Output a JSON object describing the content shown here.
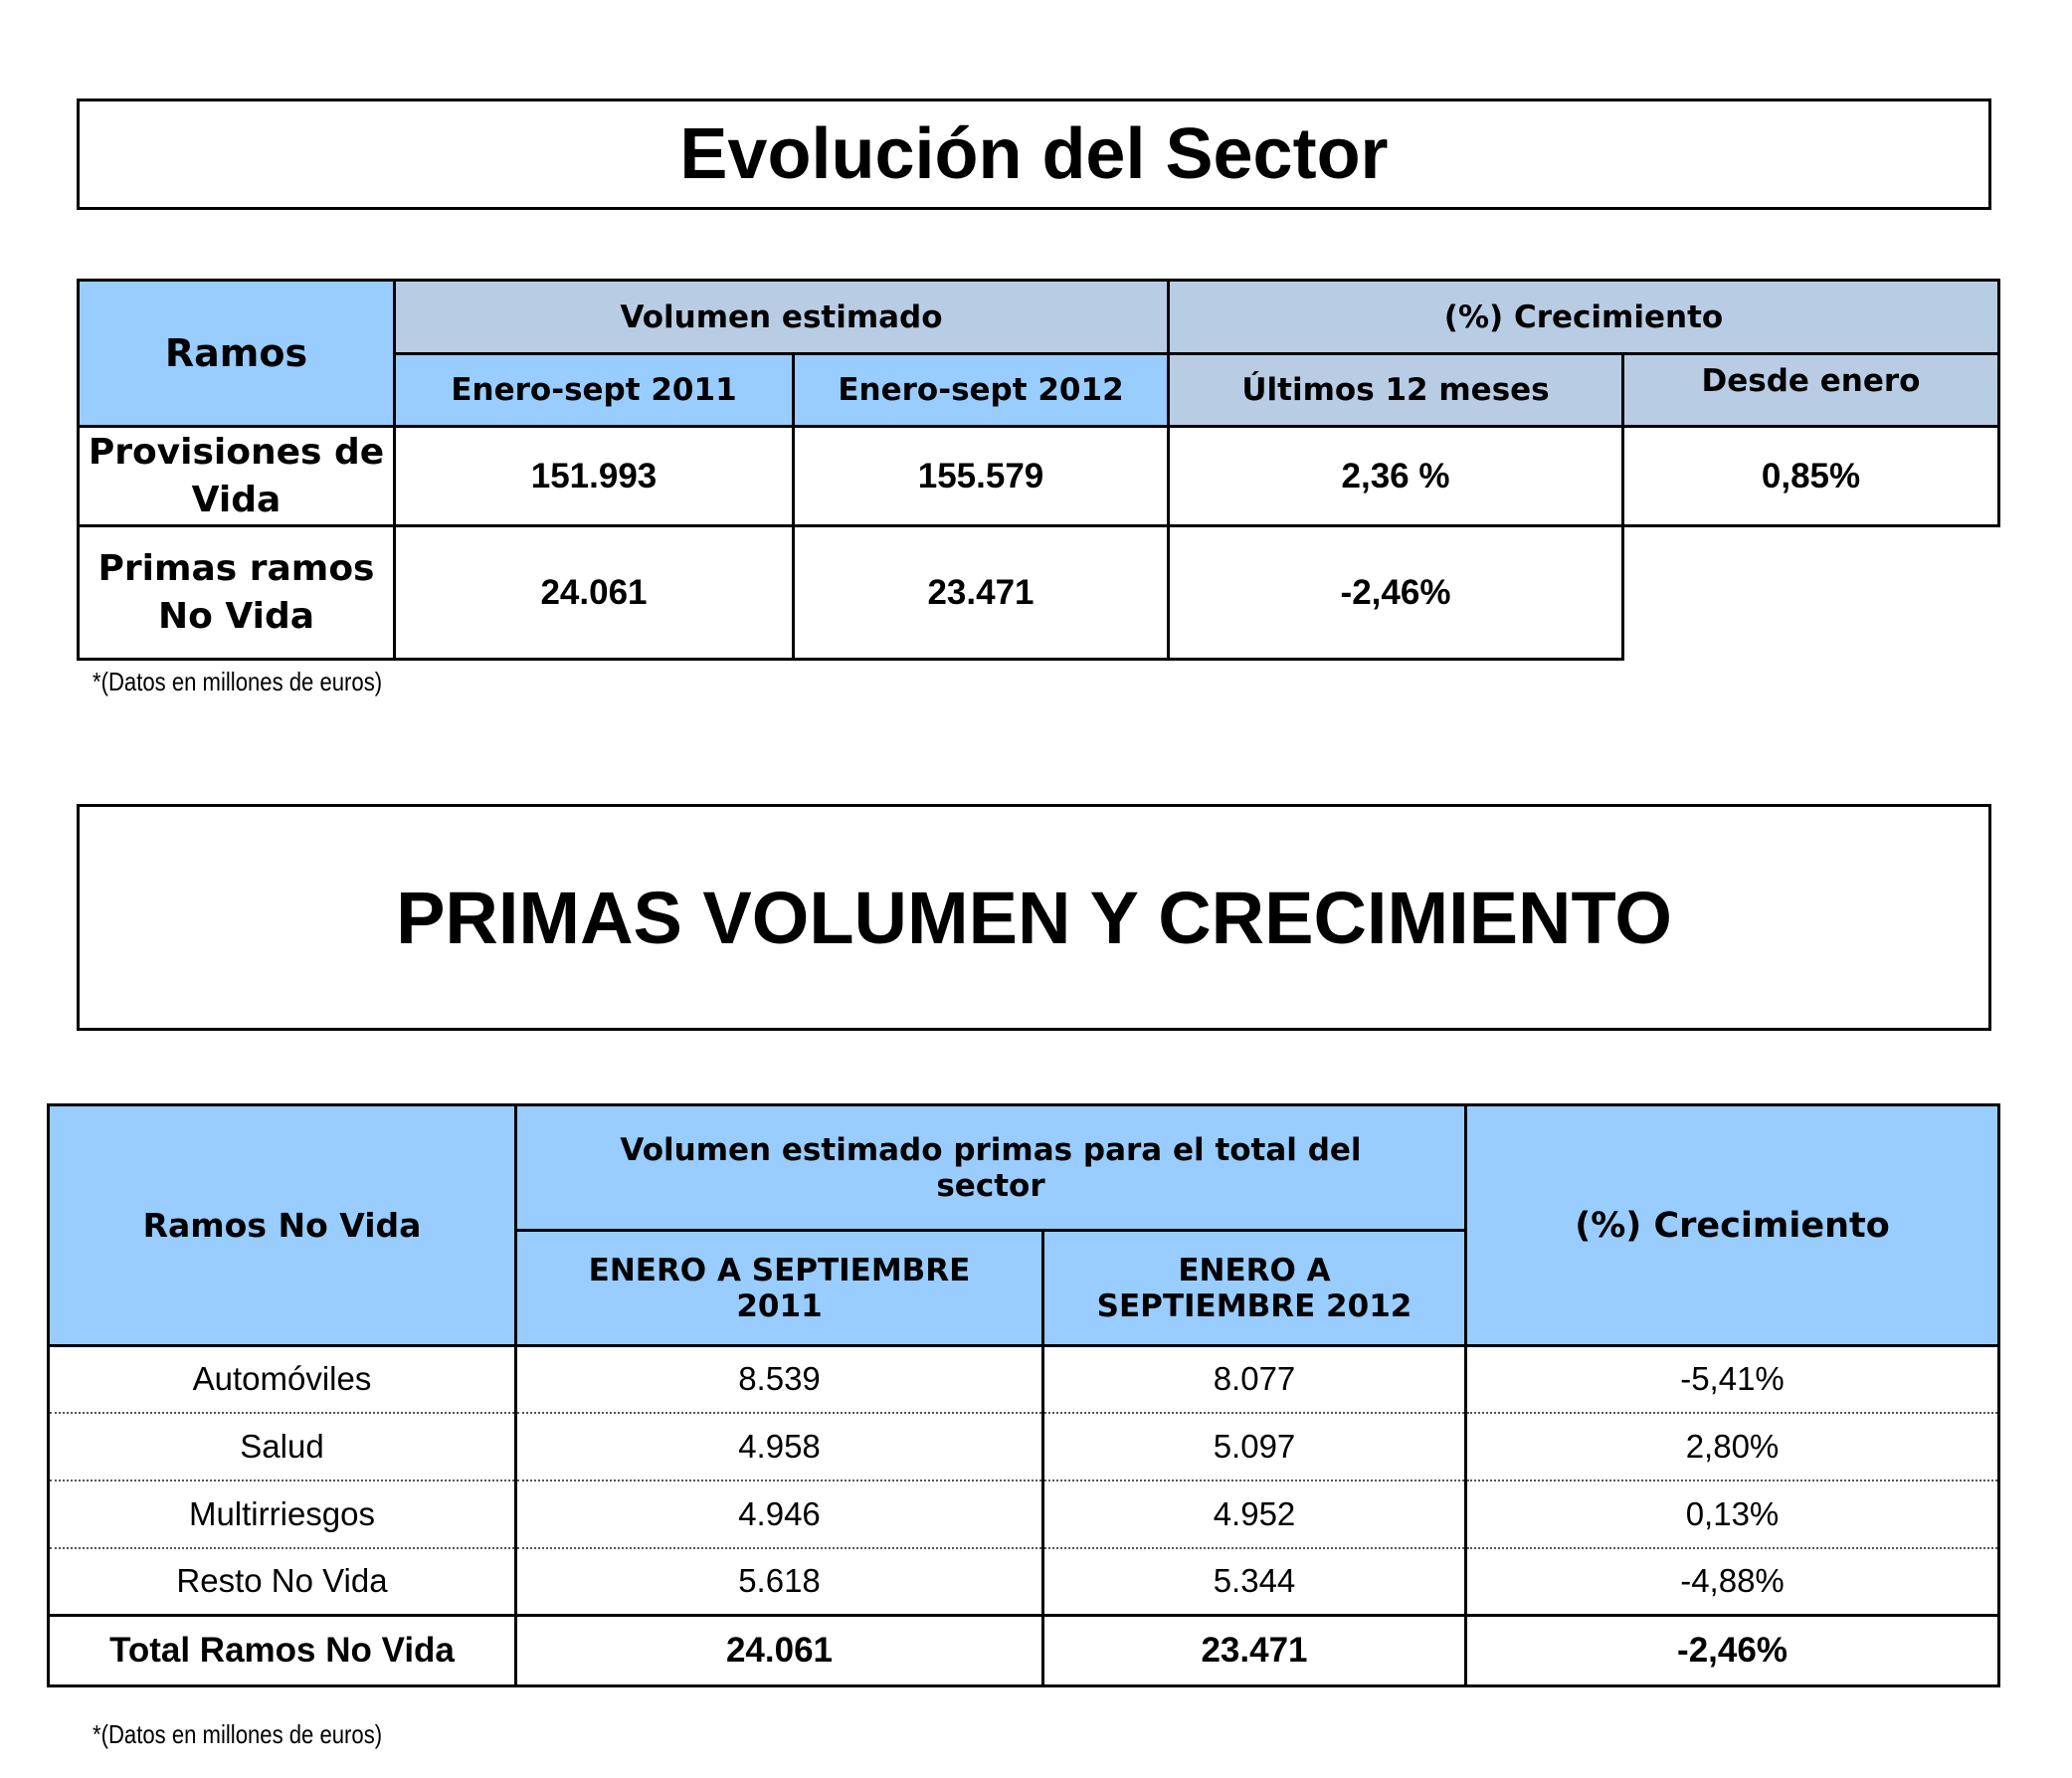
{
  "title1": "Evolución del Sector",
  "table1": {
    "header": {
      "ramos": "Ramos",
      "volumen": "Volumen estimado",
      "crecimiento": "(%) Crecimiento",
      "col_2011": "Enero-sept 2011",
      "col_2012": "Enero-sept 2012",
      "ultimos": "Últimos 12 meses",
      "desde_enero": "Desde enero"
    },
    "rows": [
      {
        "label": "Provisiones de Vida",
        "v2011": "151.993",
        "v2012": "155.579",
        "ultimos": "2,36 %",
        "desde_enero": "0,85%"
      },
      {
        "label": "Primas ramos No Vida",
        "v2011": "24.061",
        "v2012": "23.471",
        "ultimos": "-2,46%"
      }
    ],
    "note": "*(Datos en millones de euros)"
  },
  "title2": "PRIMAS VOLUMEN Y CRECIMIENTO",
  "table2": {
    "header": {
      "ramos": "Ramos No Vida",
      "volumen": "Volumen estimado primas para el total del sector",
      "col_2011": "ENERO A SEPTIEMBRE 2011",
      "col_2012": "ENERO A SEPTIEMBRE 2012",
      "crecimiento": "(%) Crecimiento"
    },
    "rows": [
      {
        "label": "Automóviles",
        "v2011": "8.539",
        "v2012": "8.077",
        "pct": "-5,41%"
      },
      {
        "label": "Salud",
        "v2011": "4.958",
        "v2012": "5.097",
        "pct": "2,80%"
      },
      {
        "label": "Multirriesgos",
        "v2011": "4.946",
        "v2012": "4.952",
        "pct": "0,13%"
      },
      {
        "label": "Resto No Vida",
        "v2011": "5.618",
        "v2012": "5.344",
        "pct": "-4,88%"
      }
    ],
    "total": {
      "label": "Total Ramos No Vida",
      "v2011": "24.061",
      "v2012": "23.471",
      "pct": "-2,46%"
    },
    "note": "*(Datos en millones de euros)"
  },
  "colors": {
    "light_blue": "#99ccff",
    "grey_blue": "#b8cce4"
  }
}
